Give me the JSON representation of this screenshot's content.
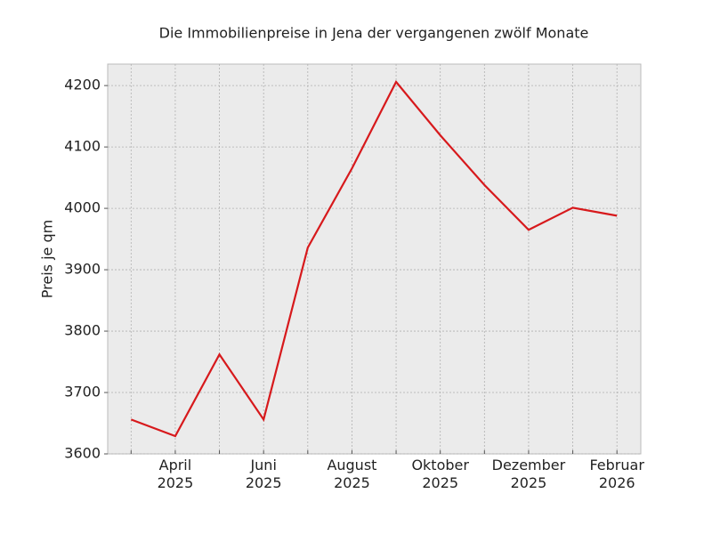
{
  "chart_data": {
    "type": "line",
    "title": "Die Immobilienpreise in Jena der vergangenen zwölf Monate",
    "y_label": "Preis je qm",
    "categories": [
      null,
      "April\n2025",
      null,
      "Juni\n2025",
      null,
      "August\n2025",
      null,
      "Oktober\n2025",
      null,
      "Dezember\n2025",
      null,
      "Februar\n2026"
    ],
    "series": [
      {
        "name": "Preis je qm",
        "color": "#d7191c",
        "values": [
          3656,
          3629,
          3762,
          3656,
          3936,
          4065,
          4206,
          4119,
          4038,
          3965,
          4001,
          3988
        ]
      }
    ],
    "ylim": [
      3600,
      4235
    ],
    "yticks": [
      3600,
      3700,
      3800,
      3900,
      4000,
      4100,
      4200
    ],
    "grid": true
  }
}
